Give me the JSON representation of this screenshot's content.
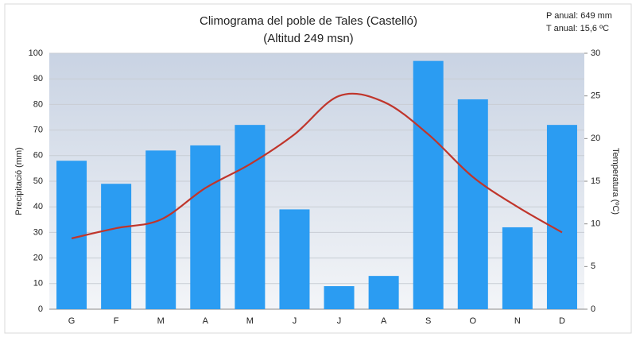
{
  "chart_data": {
    "type": "bar_line",
    "title": "Climograma del poble de Tales (Castelló)",
    "subtitle": "(Altitud 249 msn)",
    "annotations": [
      "P anual: 649 mm",
      "T anual: 15,6 ºC"
    ],
    "categories": [
      "G",
      "F",
      "M",
      "A",
      "M",
      "J",
      "J",
      "A",
      "S",
      "O",
      "N",
      "D"
    ],
    "series": [
      {
        "name": "Precipitació",
        "type": "bar",
        "color": "#2b9cf2",
        "values": [
          58,
          49,
          62,
          64,
          72,
          39,
          9,
          13,
          97,
          82,
          32,
          72
        ]
      },
      {
        "name": "Temperatura",
        "type": "line",
        "axis": "y2",
        "color": "#c0352b",
        "values": [
          8.3,
          9.5,
          10.5,
          14.2,
          17,
          20.5,
          25,
          24.3,
          20.5,
          15.5,
          12,
          9
        ]
      }
    ],
    "ylabel": "Precipitació (mm)",
    "y2label": "Temperatura (ºC)",
    "ylim": [
      0,
      100
    ],
    "yticks": [
      0,
      10,
      20,
      30,
      40,
      50,
      60,
      70,
      80,
      90,
      100
    ],
    "y2lim": [
      0,
      30
    ],
    "y2ticks": [
      0,
      5,
      10,
      15,
      20,
      25,
      30
    ],
    "grid": true
  }
}
